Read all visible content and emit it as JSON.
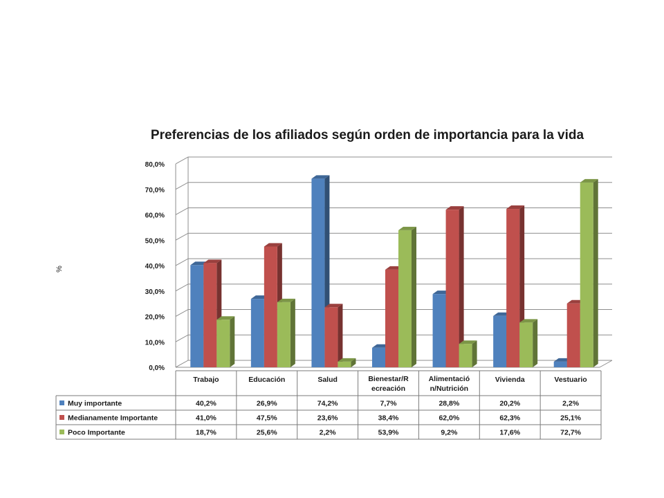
{
  "chart_data": {
    "type": "bar",
    "title": "Preferencias de los afiliados según orden de importancia para la vida",
    "ylabel": "%",
    "xlabel": "",
    "ylim": [
      0,
      80
    ],
    "y_ticks": [
      "0,0%",
      "10,0%",
      "20,0%",
      "30,0%",
      "40,0%",
      "50,0%",
      "60,0%",
      "70,0%",
      "80,0%"
    ],
    "grid": true,
    "legend": "data-table-below",
    "categories": [
      [
        "Trabajo"
      ],
      [
        "Educación"
      ],
      [
        "Salud"
      ],
      [
        "Bienestar/R",
        "ecreación"
      ],
      [
        "Alimentació",
        "n/Nutrición"
      ],
      [
        "Vivienda"
      ],
      [
        "Vestuario"
      ]
    ],
    "series": [
      {
        "name": "Muy importante",
        "color": "#4F81BD",
        "values": [
          40.2,
          26.9,
          74.2,
          7.7,
          28.8,
          20.2,
          2.2
        ],
        "labels": [
          "40,2%",
          "26,9%",
          "74,2%",
          "7,7%",
          "28,8%",
          "20,2%",
          "2,2%"
        ]
      },
      {
        "name": "Medianamente Importante",
        "color": "#C0504D",
        "values": [
          41.0,
          47.5,
          23.6,
          38.4,
          62.0,
          62.3,
          25.1
        ],
        "labels": [
          "41,0%",
          "47,5%",
          "23,6%",
          "38,4%",
          "62,0%",
          "62,3%",
          "25,1%"
        ]
      },
      {
        "name": "Poco Importante",
        "color": "#9BBB59",
        "values": [
          18.7,
          25.6,
          2.2,
          53.9,
          9.2,
          17.6,
          72.7
        ],
        "labels": [
          "18,7%",
          "25,6%",
          "2,2%",
          "53,9%",
          "9,2%",
          "17,6%",
          "72,7%"
        ]
      }
    ]
  }
}
